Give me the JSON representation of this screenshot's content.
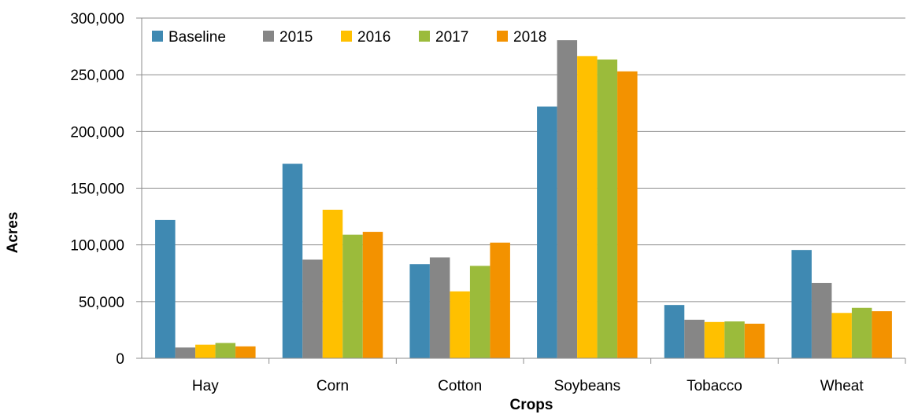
{
  "chart_data": {
    "type": "bar",
    "title": "",
    "xlabel": "Crops",
    "ylabel": "Acres",
    "categories": [
      "Hay",
      "Corn",
      "Cotton",
      "Soybeans",
      "Tobacco",
      "Wheat"
    ],
    "series": [
      {
        "name": "Baseline",
        "color": "#3F89B2",
        "values": [
          122000,
          171500,
          83000,
          222000,
          47000,
          95500
        ]
      },
      {
        "name": "2015",
        "color": "#868686",
        "values": [
          9500,
          87000,
          89000,
          280500,
          34000,
          66500
        ]
      },
      {
        "name": "2016",
        "color": "#FFC000",
        "values": [
          12000,
          131000,
          59000,
          266500,
          32000,
          40000
        ]
      },
      {
        "name": "2017",
        "color": "#9BBB3B",
        "values": [
          13500,
          109000,
          81500,
          263500,
          32500,
          44500
        ]
      },
      {
        "name": "2018",
        "color": "#F39200",
        "values": [
          10500,
          111500,
          102000,
          253000,
          30500,
          41500
        ]
      }
    ],
    "ylim": [
      0,
      300000
    ],
    "yticks": [
      "0",
      "50,000",
      "100,000",
      "150,000",
      "200,000",
      "250,000",
      "300,000"
    ],
    "grid": true,
    "legend_position": "top-left"
  }
}
